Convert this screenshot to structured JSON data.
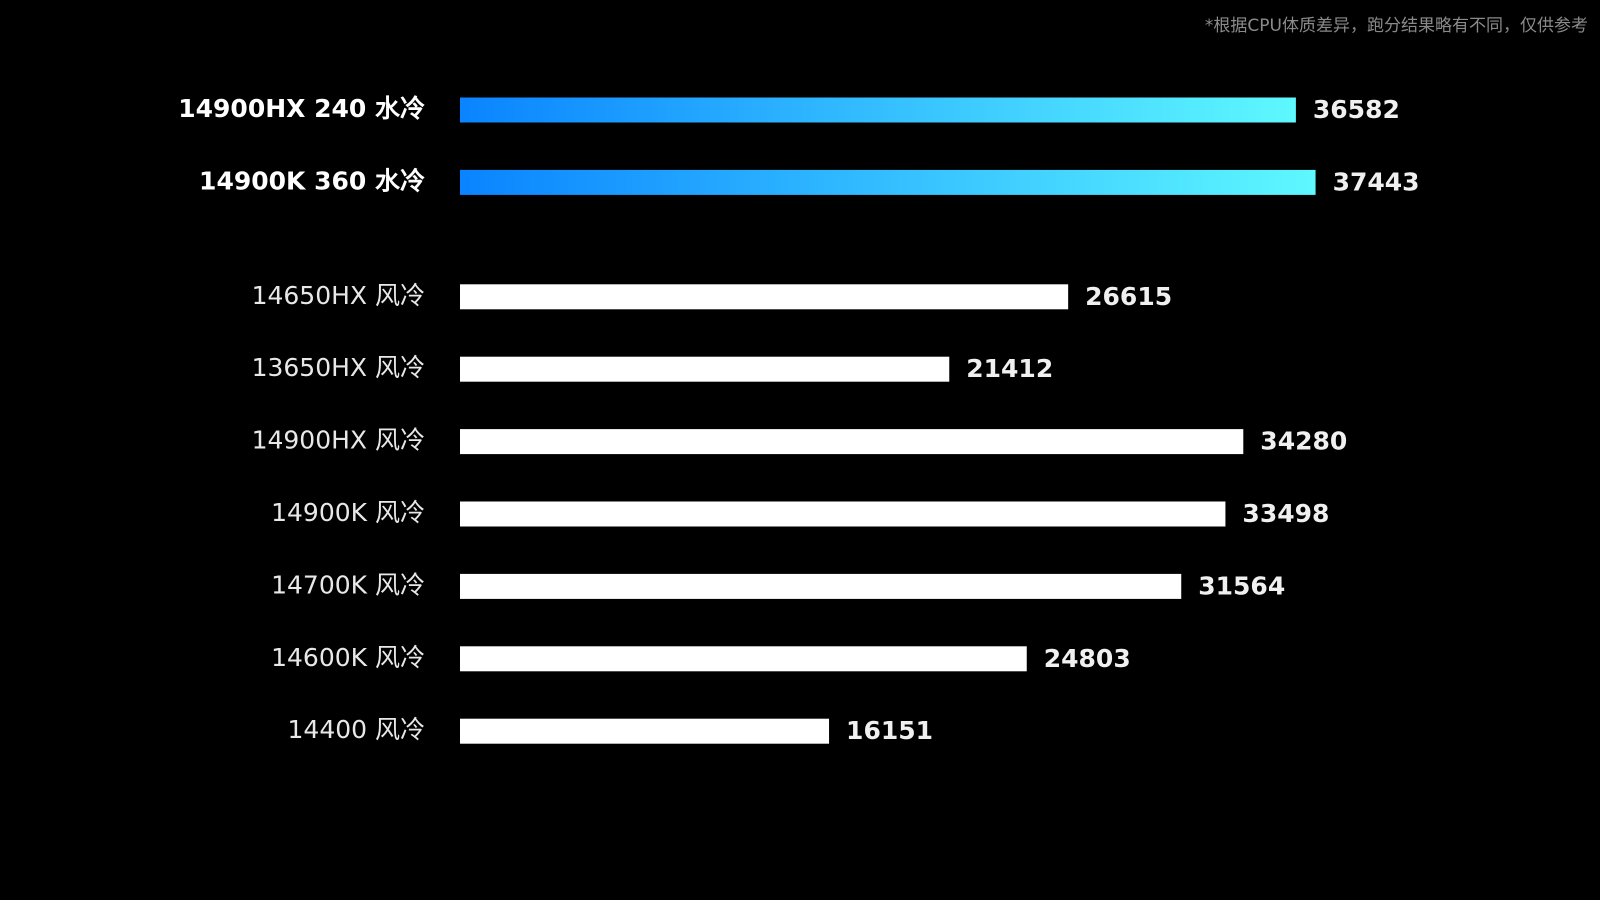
{
  "chart_data": {
    "type": "bar",
    "orientation": "horizontal",
    "note": "*根据CPU体质差异，跑分结果略有不同，仅供参考",
    "categories": [
      "14900HX 240 水冷",
      "14900K 360 水冷",
      "14650HX 风冷",
      "13650HX 风冷",
      "14900HX 风冷",
      "14900K 风冷",
      "14700K 风冷",
      "14600K 风冷",
      "14400 风冷"
    ],
    "values": [
      36582,
      37443,
      26615,
      21412,
      34280,
      33498,
      31564,
      24803,
      16151
    ],
    "colors": [
      [
        "#0a84ff",
        "#5ef8ff"
      ],
      [
        "#0a84ff",
        "#5ef8ff"
      ],
      "#ffffff",
      "#ffffff",
      "#ffffff",
      "#ffffff",
      "#ffffff",
      "#ffffff",
      "#ffffff"
    ]
  }
}
